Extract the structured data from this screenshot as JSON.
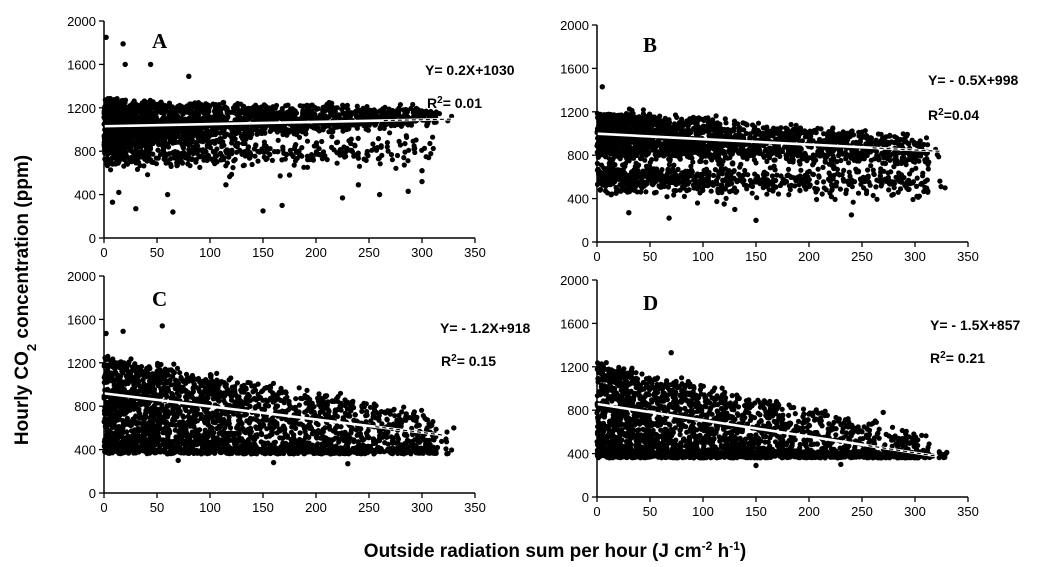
{
  "figure": {
    "ylabel": {
      "pre": "Hourly CO",
      "sub": "2",
      "post": " concentration (ppm)"
    },
    "xlabel": {
      "pre": "Outside radiation sum per hour (J cm",
      "sup1": "-2",
      "mid": " h",
      "sup2": "-1",
      "post": ")"
    }
  },
  "chart_data": [
    {
      "type": "scatter",
      "panel": "A",
      "equation": "Y= 0.2X+1030",
      "r2_label": "R",
      "r2_sup": "2",
      "r2_value": "= 0.01",
      "fit": {
        "slope": 0.2,
        "intercept": 1030,
        "x_range": [
          0,
          330
        ]
      },
      "xlim": [
        0,
        350
      ],
      "ylim": [
        0,
        2000
      ],
      "xticks": [
        0,
        50,
        100,
        150,
        200,
        250,
        300,
        350
      ],
      "yticks": [
        0,
        400,
        800,
        1200,
        1600,
        2000
      ],
      "cluster": {
        "xmax": 330,
        "xdecay": 70,
        "center": 1050,
        "spread_start": 230,
        "spread_end": 50,
        "center2": 780,
        "frac2": 0.18,
        "count": 2600
      },
      "outliers": [
        [
          2,
          1850
        ],
        [
          18,
          1790
        ],
        [
          8,
          330
        ],
        [
          30,
          270
        ],
        [
          65,
          240
        ],
        [
          150,
          250
        ],
        [
          168,
          300
        ],
        [
          175,
          580
        ],
        [
          225,
          370
        ],
        [
          240,
          490
        ],
        [
          260,
          400
        ],
        [
          300,
          620
        ],
        [
          300,
          520
        ],
        [
          287,
          430
        ],
        [
          115,
          490
        ],
        [
          14,
          420
        ],
        [
          60,
          400
        ],
        [
          44,
          1600
        ],
        [
          80,
          1490
        ],
        [
          20,
          1600
        ]
      ]
    },
    {
      "type": "scatter",
      "panel": "B",
      "equation": "Y= - 0.5X+998",
      "r2_label": "R",
      "r2_sup": "2",
      "r2_value": "=0.04",
      "fit": {
        "slope": -0.5,
        "intercept": 998,
        "x_range": [
          0,
          325
        ]
      },
      "xlim": [
        0,
        350
      ],
      "ylim": [
        0,
        2000
      ],
      "xticks": [
        0,
        50,
        100,
        150,
        200,
        250,
        300,
        350
      ],
      "yticks": [
        0,
        400,
        800,
        1200,
        1600,
        2000
      ],
      "cluster": {
        "xmax": 330,
        "xdecay": 90,
        "center": 1000,
        "spread_start": 220,
        "spread_end": 120,
        "center2": 600,
        "frac2": 0.3,
        "count": 2600
      },
      "outliers": [
        [
          150,
          200
        ],
        [
          30,
          270
        ],
        [
          68,
          220
        ],
        [
          240,
          250
        ],
        [
          5,
          1430
        ],
        [
          18,
          450
        ],
        [
          120,
          350
        ],
        [
          130,
          300
        ]
      ]
    },
    {
      "type": "scatter",
      "panel": "C",
      "equation": "Y= - 1.2X+918",
      "r2_label": "R",
      "r2_sup": "2",
      "r2_value": "= 0.15",
      "fit": {
        "slope": -1.2,
        "intercept": 918,
        "x_range": [
          0,
          320
        ]
      },
      "xlim": [
        0,
        350
      ],
      "ylim": [
        0,
        2000
      ],
      "xticks": [
        0,
        50,
        100,
        150,
        200,
        250,
        300,
        350
      ],
      "yticks": [
        0,
        400,
        800,
        1200,
        1600,
        2000
      ],
      "cluster": {
        "xmax": 330,
        "xdecay": 110,
        "center": 860,
        "spread_start": 430,
        "spread_end": 280,
        "center2": 420,
        "frac2": 0.25,
        "count": 2800
      },
      "outliers": [
        [
          2,
          1470
        ],
        [
          18,
          1490
        ],
        [
          55,
          1540
        ],
        [
          330,
          600
        ],
        [
          70,
          300
        ],
        [
          160,
          280
        ],
        [
          230,
          270
        ]
      ]
    },
    {
      "type": "scatter",
      "panel": "D",
      "equation": "Y= - 1.5X+857",
      "r2_label": "R",
      "r2_sup": "2",
      "r2_value": "= 0.21",
      "fit": {
        "slope": -1.5,
        "intercept": 857,
        "x_range": [
          0,
          320
        ]
      },
      "xlim": [
        0,
        350
      ],
      "ylim": [
        0,
        2000
      ],
      "xticks": [
        0,
        50,
        100,
        150,
        200,
        250,
        300,
        350
      ],
      "yticks": [
        0,
        400,
        800,
        1200,
        1600,
        2000
      ],
      "cluster": {
        "xmax": 330,
        "xdecay": 100,
        "center": 820,
        "spread_start": 440,
        "spread_end": 250,
        "center2": 400,
        "frac2": 0.3,
        "count": 2800
      },
      "outliers": [
        [
          70,
          1330
        ],
        [
          270,
          780
        ],
        [
          330,
          410
        ],
        [
          230,
          300
        ],
        [
          150,
          290
        ]
      ]
    }
  ]
}
